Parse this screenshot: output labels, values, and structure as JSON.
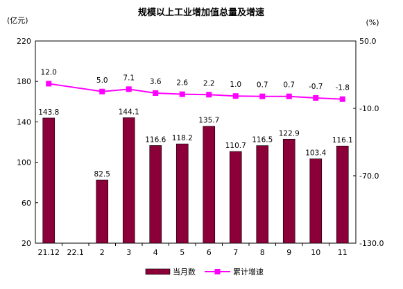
{
  "chart_data": {
    "type": "bar",
    "title": "规模以上工业增加值总量及增速",
    "ylabel_left": "(亿元)",
    "ylabel_right": "(%)",
    "categories": [
      "21.12",
      "22.1",
      "2",
      "3",
      "4",
      "5",
      "6",
      "7",
      "8",
      "9",
      "10",
      "11"
    ],
    "series": [
      {
        "name": "当月数",
        "type": "bar",
        "axis": "left",
        "color": "#8b0038",
        "values": [
          143.8,
          null,
          82.5,
          144.1,
          116.6,
          118.2,
          135.7,
          110.7,
          116.5,
          122.9,
          103.4,
          116.1
        ],
        "labels": [
          "143.8",
          "",
          "82.5",
          "144.1",
          "116.6",
          "118.2",
          "135.7",
          "110.7",
          "116.5",
          "122.9",
          "103.4",
          "116.1"
        ]
      },
      {
        "name": "累计增速",
        "type": "line",
        "axis": "right",
        "color": "#ff00ff",
        "values": [
          12.0,
          null,
          5.0,
          7.1,
          3.6,
          2.6,
          2.2,
          1.0,
          0.7,
          0.7,
          -0.7,
          -1.8
        ],
        "labels": [
          "12.0",
          "",
          "5.0",
          "7.1",
          "3.6",
          "2.6",
          "2.2",
          "1.0",
          "0.7",
          "0.7",
          "-0.7",
          "-1.8"
        ]
      }
    ],
    "y_left": {
      "min": 20,
      "max": 220,
      "ticks": [
        "20",
        "60",
        "100",
        "140",
        "180",
        "220"
      ]
    },
    "y_right": {
      "min": -130,
      "max": 50,
      "ticks": [
        "50.0",
        "-10.0",
        "-70.0",
        "-130.0"
      ]
    },
    "grid": false,
    "legend_position": "bottom-center"
  }
}
